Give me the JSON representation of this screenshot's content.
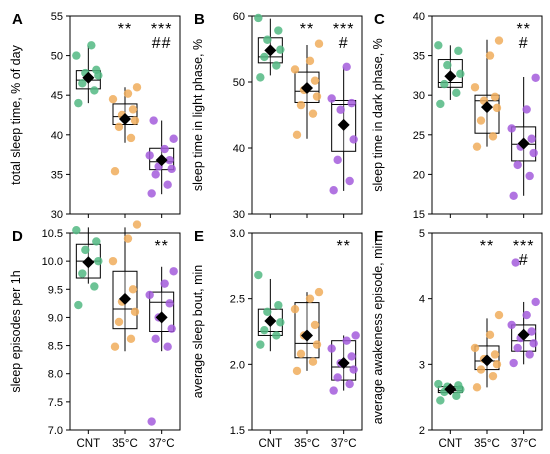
{
  "colors": {
    "CNT": "#52b882",
    "35C": "#f0ad5c",
    "37C": "#a35cdc",
    "box": "#000000"
  },
  "chart_data": [
    {
      "type": "box",
      "letter": "A",
      "ylabel": "total sleep time, % of day",
      "ylim": [
        30,
        55
      ],
      "yticks": [
        "30",
        "35",
        "40",
        "45",
        "50",
        "55"
      ],
      "categories": [
        "CNT",
        "35°C",
        "37°C"
      ],
      "show_xticks": false,
      "groups": [
        {
          "mean": 47.2,
          "box": {
            "whisker_low": 44.0,
            "q1": 45.8,
            "median": 46.9,
            "q3": 48.1,
            "whisker_high": 51.2
          },
          "points": [
            44.0,
            45.6,
            46.5,
            47.5,
            47.8,
            48.2,
            50.0,
            51.3
          ]
        },
        {
          "mean": 42.0,
          "box": {
            "whisker_low": 39.0,
            "q1": 41.3,
            "median": 42.3,
            "q3": 43.9,
            "whisker_high": 46.0
          },
          "points": [
            35.4,
            39.6,
            41.0,
            41.8,
            42.5,
            43.2,
            44.5,
            45.2,
            46.0
          ]
        },
        {
          "mean": 36.8,
          "box": {
            "whisker_low": 32.5,
            "q1": 35.6,
            "median": 36.6,
            "q3": 38.3,
            "whisker_high": 41.8
          },
          "points": [
            32.6,
            33.7,
            35.0,
            35.7,
            36.0,
            36.8,
            37.4,
            38.2,
            39.5,
            41.8
          ]
        }
      ],
      "annotations": {
        "35°C": [
          "**"
        ],
        "37°C": [
          "***",
          "##"
        ]
      }
    },
    {
      "type": "box",
      "letter": "B",
      "ylabel": "sleep time in light phase, %",
      "ylim": [
        30,
        60
      ],
      "yticks": [
        "30",
        "40",
        "50",
        "60"
      ],
      "categories": [
        "CNT",
        "35°C",
        "37°C"
      ],
      "show_xticks": false,
      "groups": [
        {
          "mean": 54.8,
          "box": {
            "whisker_low": 51.0,
            "q1": 52.9,
            "median": 53.8,
            "q3": 56.7,
            "whisker_high": 59.6
          },
          "points": [
            50.7,
            52.5,
            53.8,
            54.9,
            56.4,
            57.8,
            59.7
          ]
        },
        {
          "mean": 49.1,
          "box": {
            "whisker_low": 41.4,
            "q1": 46.9,
            "median": 48.6,
            "q3": 51.5,
            "whisker_high": 55.6
          },
          "points": [
            42.0,
            45.2,
            46.5,
            47.8,
            48.8,
            50.2,
            51.9,
            53.2,
            55.8
          ]
        },
        {
          "mean": 43.5,
          "box": {
            "whisker_low": 33.5,
            "q1": 39.5,
            "median": 46.6,
            "q3": 47.2,
            "whisker_high": 52.2
          },
          "points": [
            33.6,
            35.0,
            38.2,
            41.3,
            45.8,
            46.8,
            47.5,
            52.3
          ]
        }
      ],
      "annotations": {
        "35°C": [
          "**"
        ],
        "37°C": [
          "***",
          "#"
        ]
      }
    },
    {
      "type": "box",
      "letter": "C",
      "ylabel": "sleep time in dark phase, %",
      "ylim": [
        15,
        40
      ],
      "yticks": [
        "15",
        "20",
        "25",
        "30",
        "35",
        "40"
      ],
      "categories": [
        "CNT",
        "35°C",
        "37°C"
      ],
      "show_xticks": false,
      "groups": [
        {
          "mean": 32.4,
          "box": {
            "whisker_low": 29.4,
            "q1": 31.0,
            "median": 31.6,
            "q3": 34.5,
            "whisker_high": 36.3
          },
          "points": [
            28.9,
            30.3,
            31.4,
            32.7,
            33.8,
            35.6,
            36.3
          ]
        },
        {
          "mean": 28.5,
          "box": {
            "whisker_low": 23.5,
            "q1": 25.2,
            "median": 29.3,
            "q3": 30.0,
            "whisker_high": 37.0
          },
          "points": [
            23.5,
            24.8,
            26.8,
            28.4,
            29.3,
            29.8,
            31.0,
            35.0,
            36.9
          ]
        },
        {
          "mean": 23.9,
          "box": {
            "whisker_low": 17.3,
            "q1": 21.7,
            "median": 23.8,
            "q3": 26.0,
            "whisker_high": 32.3
          },
          "points": [
            17.3,
            19.8,
            21.2,
            22.7,
            23.5,
            24.5,
            25.8,
            28.2,
            32.2
          ]
        }
      ],
      "annotations": {
        "37°C": [
          "**",
          "#"
        ]
      }
    },
    {
      "type": "box",
      "letter": "D",
      "ylabel": "sleep episodes per 1h",
      "ylim": [
        7.0,
        10.5
      ],
      "yticks": [
        "7.0",
        "7.5",
        "8.0",
        "8.5",
        "9.0",
        "9.5",
        "10.0",
        "10.5"
      ],
      "categories": [
        "CNT",
        "35°C",
        "37°C"
      ],
      "show_xticks": true,
      "groups": [
        {
          "mean": 9.98,
          "box": {
            "whisker_low": 9.6,
            "q1": 9.7,
            "median": 10.0,
            "q3": 10.3,
            "whisker_high": 10.6
          },
          "points": [
            9.22,
            9.55,
            9.78,
            10.0,
            10.2,
            10.35,
            10.55
          ]
        },
        {
          "mean": 9.33,
          "box": {
            "whisker_low": 8.4,
            "q1": 8.8,
            "median": 9.15,
            "q3": 9.82,
            "whisker_high": 10.6
          },
          "points": [
            8.48,
            8.62,
            8.92,
            9.1,
            9.28,
            9.5,
            10.0,
            10.4,
            10.65
          ]
        },
        {
          "mean": 9.0,
          "box": {
            "whisker_low": 8.4,
            "q1": 8.75,
            "median": 9.27,
            "q3": 9.45,
            "whisker_high": 9.9
          },
          "points": [
            7.15,
            8.48,
            8.62,
            8.8,
            9.0,
            9.25,
            9.4,
            9.6,
            9.82
          ]
        }
      ],
      "annotations": {
        "37°C": [
          "**"
        ]
      }
    },
    {
      "type": "box",
      "letter": "E",
      "ylabel": "average sleep bout, min",
      "ylim": [
        1.5,
        3.0
      ],
      "yticks": [
        "1.5",
        "2.0",
        "2.5",
        "3.0"
      ],
      "categories": [
        "CNT",
        "35°C",
        "37°C"
      ],
      "show_xticks": true,
      "groups": [
        {
          "mean": 2.33,
          "box": {
            "whisker_low": 2.1,
            "q1": 2.22,
            "median": 2.25,
            "q3": 2.42,
            "whisker_high": 2.65
          },
          "points": [
            2.15,
            2.22,
            2.26,
            2.32,
            2.4,
            2.45,
            2.68
          ]
        },
        {
          "mean": 2.22,
          "box": {
            "whisker_low": 1.95,
            "q1": 2.05,
            "median": 2.16,
            "q3": 2.47,
            "whisker_high": 2.55
          },
          "points": [
            1.95,
            2.02,
            2.08,
            2.15,
            2.22,
            2.3,
            2.42,
            2.5,
            2.55
          ]
        },
        {
          "mean": 2.01,
          "box": {
            "whisker_low": 1.8,
            "q1": 1.88,
            "median": 1.98,
            "q3": 2.18,
            "whisker_high": 2.22
          },
          "points": [
            1.8,
            1.85,
            1.9,
            1.96,
            2.01,
            2.06,
            2.12,
            2.18,
            2.22
          ]
        }
      ],
      "annotations": {
        "37°C": [
          "**"
        ]
      }
    },
    {
      "type": "box",
      "letter": "F",
      "ylabel": "average awakeness episode, min",
      "ylim": [
        2,
        5
      ],
      "yticks": [
        "2",
        "3",
        "4",
        "5"
      ],
      "categories": [
        "CNT",
        "35°C",
        "37°C"
      ],
      "show_xticks": true,
      "groups": [
        {
          "mean": 2.62,
          "box": {
            "whisker_low": 2.55,
            "q1": 2.57,
            "median": 2.6,
            "q3": 2.66,
            "whisker_high": 2.7
          },
          "points": [
            2.45,
            2.52,
            2.58,
            2.62,
            2.66,
            2.68,
            2.7
          ]
        },
        {
          "mean": 3.06,
          "box": {
            "whisker_low": 2.65,
            "q1": 2.92,
            "median": 3.05,
            "q3": 3.28,
            "whisker_high": 3.7
          },
          "points": [
            2.65,
            2.82,
            2.92,
            3.0,
            3.08,
            3.15,
            3.25,
            3.45,
            3.75
          ]
        },
        {
          "mean": 3.45,
          "box": {
            "whisker_low": 3.0,
            "q1": 3.2,
            "median": 3.36,
            "q3": 3.6,
            "whisker_high": 3.95
          },
          "points": [
            3.02,
            3.15,
            3.25,
            3.32,
            3.4,
            3.5,
            3.6,
            3.75,
            3.95,
            4.55
          ]
        }
      ],
      "annotations": {
        "35°C": [
          "**"
        ],
        "37°C": [
          "***",
          "#"
        ]
      }
    }
  ]
}
